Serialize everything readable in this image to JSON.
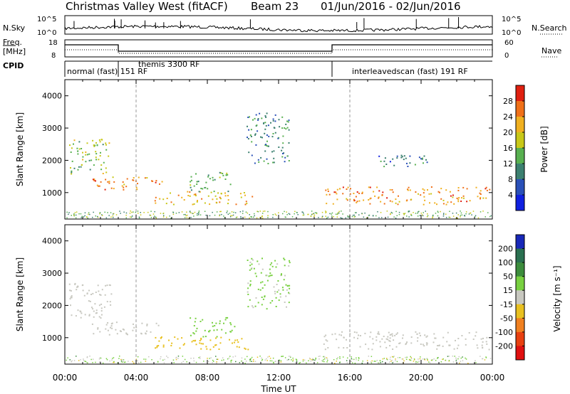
{
  "title": {
    "station": "Christmas Valley West (fitACF)",
    "beam": "Beam 23",
    "dates": "01/Jun/2016 - 02/Jun/2016"
  },
  "top_panels": {
    "nsky_label": "N.Sky",
    "nsearch_label": "N.Search",
    "nsky_ticks": [
      "10^5",
      "10^0"
    ],
    "freq_label_1": "Freq.",
    "freq_label_2": "[MHz]",
    "freq_ticks": [
      "18",
      "8"
    ],
    "nave_label": "Nave",
    "nave_ticks": [
      "60",
      "0"
    ],
    "cpid_label": "CPID",
    "cpid_segments": [
      {
        "label": "normal (fast) 151 RF",
        "start_h": 0
      },
      {
        "label": "themis 3300 RF",
        "start_h": 3.0
      },
      {
        "label": "interleavedscan (fast) 191 RF",
        "start_h": 15.0
      }
    ]
  },
  "chart_data": [
    {
      "type": "heatmap",
      "parameter": "Power",
      "colorbar_label": "Power [dB]",
      "colorbar_ticks": [
        4,
        8,
        12,
        16,
        20,
        24,
        28
      ],
      "colorbar_colors": [
        "#1020e0",
        "#2a50b8",
        "#3c8070",
        "#58b050",
        "#c8c818",
        "#f0b020",
        "#f07018",
        "#e02010"
      ],
      "ylabel": "Slant Range [km]",
      "yticks": [
        1000,
        2000,
        3000,
        4000
      ],
      "ylim": [
        180,
        4500
      ],
      "xlim_hours": [
        0,
        24
      ],
      "echo_regions": [
        {
          "t0": 0.2,
          "t1": 2.6,
          "r0": 1600,
          "r1": 2700,
          "dB": 16
        },
        {
          "t0": 1.5,
          "t1": 5.5,
          "r0": 1100,
          "r1": 1500,
          "dB": 24
        },
        {
          "t0": 5.0,
          "t1": 10.5,
          "r0": 650,
          "r1": 1050,
          "dB": 22
        },
        {
          "t0": 7.0,
          "t1": 9.5,
          "r0": 1050,
          "r1": 1650,
          "dB": 14
        },
        {
          "t0": 10.2,
          "t1": 12.6,
          "r0": 1900,
          "r1": 3500,
          "dB": 10
        },
        {
          "t0": 14.5,
          "t1": 24,
          "r0": 650,
          "r1": 1200,
          "dB": 24
        },
        {
          "t0": 17.5,
          "t1": 20.5,
          "r0": 1800,
          "r1": 2200,
          "dB": 8
        }
      ]
    },
    {
      "type": "heatmap",
      "parameter": "Velocity",
      "colorbar_label": "Velocity [m s⁻¹]",
      "colorbar_ticks": [
        200,
        100,
        50,
        15,
        -15,
        -50,
        -100,
        -200
      ],
      "colorbar_colors": [
        "#1828b8",
        "#2a7050",
        "#3c8c3c",
        "#78d040",
        "#c8c8c0",
        "#e8c020",
        "#f08020",
        "#e84010",
        "#e01010"
      ],
      "ylabel": "Slant Range [km]",
      "yticks": [
        1000,
        2000,
        3000,
        4000
      ],
      "ylim": [
        180,
        4500
      ],
      "xlim_hours": [
        0,
        24
      ],
      "xlabel": "Time UT",
      "xtick_labels": [
        "00:00",
        "04:00",
        "08:00",
        "12:00",
        "16:00",
        "20:00",
        "00:00"
      ],
      "echo_regions": [
        {
          "t0": 0.2,
          "t1": 2.6,
          "r0": 1600,
          "r1": 2700,
          "v": 0
        },
        {
          "t0": 1.5,
          "t1": 5.5,
          "r0": 1100,
          "r1": 1500,
          "v": 0
        },
        {
          "t0": 5.0,
          "t1": 10.5,
          "r0": 650,
          "r1": 1050,
          "v": -30
        },
        {
          "t0": 7.0,
          "t1": 9.5,
          "r0": 1050,
          "r1": 1650,
          "v": 30
        },
        {
          "t0": 10.2,
          "t1": 12.6,
          "r0": 1900,
          "r1": 3500,
          "v": 20
        },
        {
          "t0": 14.5,
          "t1": 24,
          "r0": 650,
          "r1": 1200,
          "v": 0
        }
      ]
    }
  ]
}
